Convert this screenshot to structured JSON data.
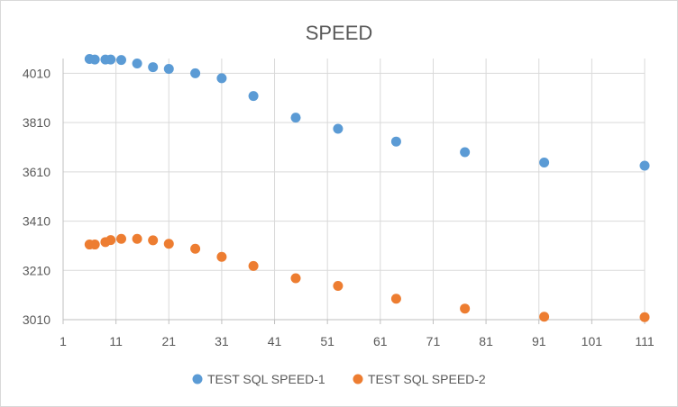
{
  "chart_data": {
    "type": "scatter",
    "title": "SPEED",
    "xlabel": "",
    "ylabel": "",
    "xlim": [
      1,
      111
    ],
    "ylim": [
      3010,
      4070
    ],
    "x_ticks": [
      1,
      11,
      21,
      31,
      41,
      51,
      61,
      71,
      81,
      91,
      101,
      111
    ],
    "y_ticks": [
      3010,
      3210,
      3410,
      3610,
      3810,
      4010
    ],
    "grid": true,
    "legend_position": "bottom",
    "series": [
      {
        "name": "TEST SQL SPEED-1",
        "color": "#5b9bd5",
        "points": [
          [
            6,
            4068
          ],
          [
            7,
            4066
          ],
          [
            9,
            4066
          ],
          [
            10,
            4066
          ],
          [
            12,
            4064
          ],
          [
            15,
            4050
          ],
          [
            18,
            4035
          ],
          [
            21,
            4028
          ],
          [
            26,
            4010
          ],
          [
            31,
            3990
          ],
          [
            37,
            3918
          ],
          [
            45,
            3830
          ],
          [
            53,
            3785
          ],
          [
            64,
            3733
          ],
          [
            77,
            3690
          ],
          [
            92,
            3648
          ],
          [
            111,
            3635
          ]
        ]
      },
      {
        "name": "TEST SQL SPEED-2",
        "color": "#ed7d31",
        "points": [
          [
            6,
            3315
          ],
          [
            7,
            3315
          ],
          [
            9,
            3325
          ],
          [
            10,
            3333
          ],
          [
            12,
            3338
          ],
          [
            15,
            3338
          ],
          [
            18,
            3332
          ],
          [
            21,
            3318
          ],
          [
            26,
            3298
          ],
          [
            31,
            3265
          ],
          [
            37,
            3228
          ],
          [
            45,
            3178
          ],
          [
            53,
            3147
          ],
          [
            64,
            3095
          ],
          [
            77,
            3055
          ],
          [
            92,
            3022
          ],
          [
            111,
            3020
          ]
        ]
      }
    ]
  }
}
